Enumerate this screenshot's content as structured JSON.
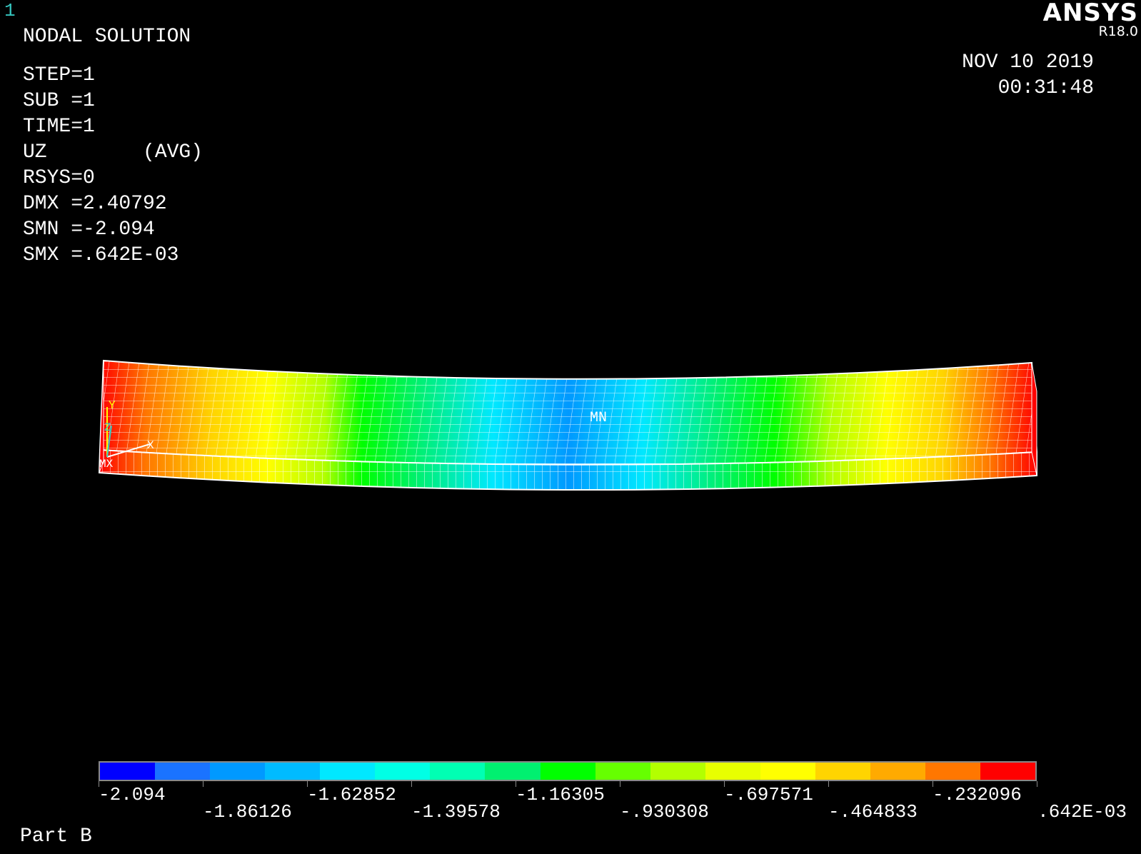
{
  "window_number": "1",
  "header": {
    "title": "NODAL SOLUTION",
    "info_lines": [
      "STEP=1",
      "SUB =1",
      "TIME=1",
      "UZ        (AVG)",
      "RSYS=0",
      "DMX =2.40792",
      "SMN =-2.094",
      "SMX =.642E-03"
    ]
  },
  "brand": {
    "logo": "ANSYS",
    "version": "R18.0"
  },
  "timestamp": {
    "date": "NOV 10 2019",
    "time": "00:31:48"
  },
  "model": {
    "min_label": "MN",
    "max_label": "MX",
    "axis_labels": [
      "Y",
      "Z",
      "X"
    ]
  },
  "legend": {
    "colors": [
      "#0000ff",
      "#1a73ff",
      "#0099ff",
      "#00bbff",
      "#00e8ff",
      "#00ffe5",
      "#00ffb3",
      "#00f070",
      "#00ff00",
      "#66ff00",
      "#b3ff00",
      "#e8ff00",
      "#ffff00",
      "#ffd400",
      "#ffaa00",
      "#ff7700",
      "#ff0000"
    ],
    "labels_row1": [
      "-2.094",
      "-1.62852",
      "-1.16305",
      "-.697571",
      "-.232096"
    ],
    "labels_row2": [
      "-1.86126",
      "-1.39578",
      "-.930308",
      "-.464833",
      ".642E-03"
    ]
  },
  "footer": {
    "part_label": "Part B"
  }
}
